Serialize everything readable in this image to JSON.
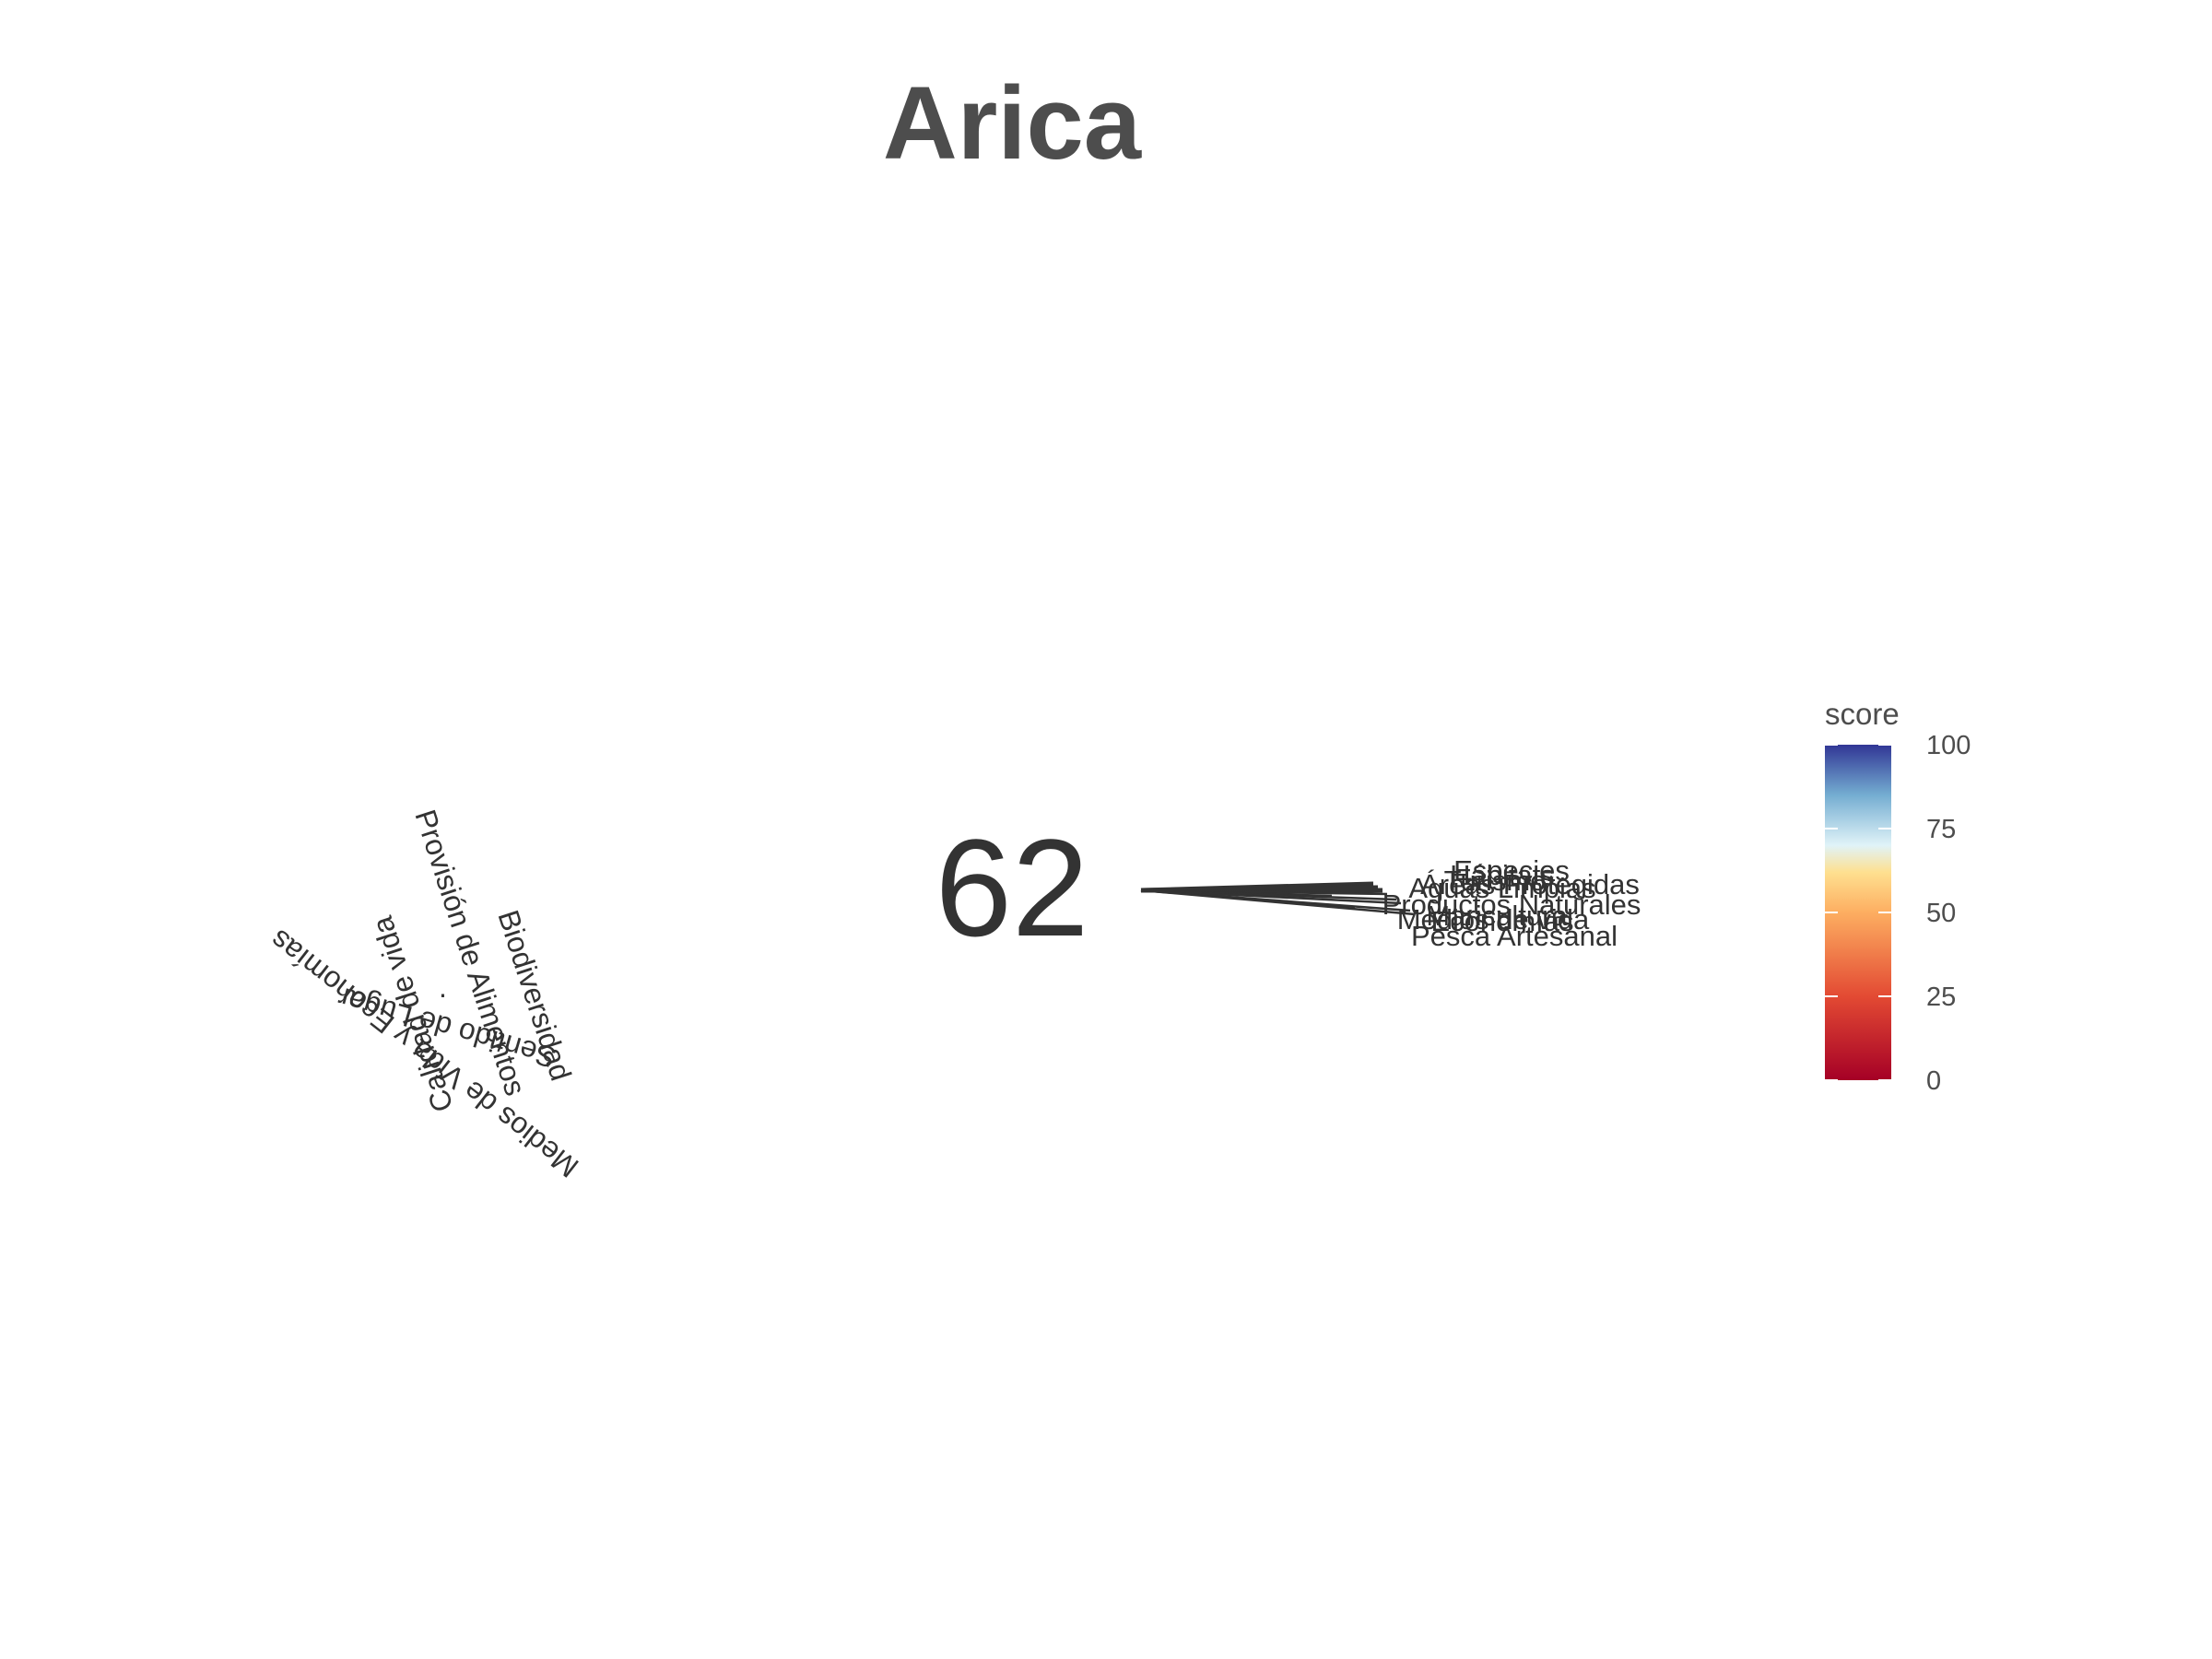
{
  "chart_data": {
    "type": "bar",
    "subtype": "flower-polar",
    "title": "Arica",
    "center_score": "62",
    "goal_labels": [
      "Provisión de Alimentos",
      "Biodiversidad",
      "Sentido de Lugar",
      "Medios de Vida y Economías",
      "Calidad de vida"
    ],
    "goal_label_fragment": ".",
    "subgoal_labels": [
      "Especies",
      "Hábitats",
      "Turismo",
      "Áreas Protegidas",
      "Aguas Limpias",
      "Productos Naturales",
      "Maricultura",
      "Economías",
      "Medios de vida",
      "Pesca Artesanal"
    ],
    "colorscale": {
      "title": "score",
      "ticks": [
        "100",
        "75",
        "50",
        "25",
        "0"
      ],
      "range": [
        0,
        100
      ],
      "colors": {
        "c0": "#a50026",
        "c25": "#e34a33",
        "c50": "#fdae61",
        "c62": "#fee090",
        "c70": "#e0f3f8",
        "c85": "#74add1",
        "c100": "#313695"
      }
    },
    "line_color": "#333333"
  }
}
